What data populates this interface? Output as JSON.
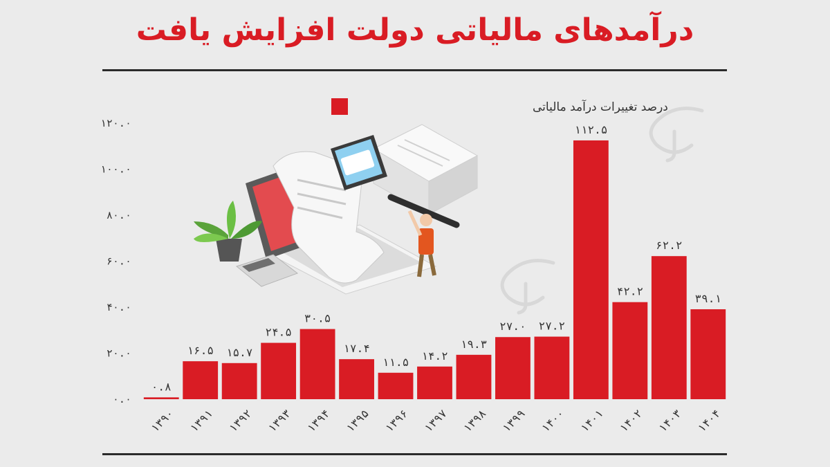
{
  "page": {
    "title": "درآمدهای مالیاتی دولت افزایش یافت"
  },
  "colors": {
    "bar": "#d91c24",
    "background": "#ebebeb",
    "rule": "#2b2b2b",
    "text": "#333333"
  },
  "illustration": {
    "icon": "tax-illustration-icon"
  },
  "chart_data": {
    "type": "bar",
    "title": "",
    "xlabel": "",
    "ylabel": "",
    "legend": {
      "label": "درصد تغییرات درآمد مالیاتی",
      "position": "top-right"
    },
    "ylim": [
      0,
      120
    ],
    "yticks": [
      0,
      20,
      40,
      60,
      80,
      100,
      120
    ],
    "ytick_labels": [
      "۰.۰",
      "۲۰.۰",
      "۴۰.۰",
      "۶۰.۰",
      "۸۰.۰",
      "۱۰۰.۰",
      "۱۲۰.۰"
    ],
    "grid": false,
    "categories": [
      "۱۳۹۰",
      "۱۳۹۱",
      "۱۳۹۲",
      "۱۳۹۳",
      "۱۳۹۴",
      "۱۳۹۵",
      "۱۳۹۶",
      "۱۳۹۷",
      "۱۳۹۸",
      "۱۳۹۹",
      "۱۴۰۰",
      "۱۴۰۱",
      "۱۴۰۲",
      "۱۴۰۳",
      "۱۴۰۴"
    ],
    "values": [
      0.8,
      16.5,
      15.7,
      24.5,
      30.5,
      17.4,
      11.5,
      14.2,
      19.3,
      27.0,
      27.2,
      112.5,
      42.2,
      62.2,
      39.1
    ],
    "value_labels": [
      "۰.۸",
      "۱۶.۵",
      "۱۵.۷",
      "۲۴.۵",
      "۳۰.۵",
      "۱۷.۴",
      "۱۱.۵",
      "۱۴.۲",
      "۱۹.۳",
      "۲۷.۰",
      "۲۷.۲",
      "۱۱۲.۵",
      "۴۲.۲",
      "۶۲.۲",
      "۳۹.۱"
    ]
  }
}
